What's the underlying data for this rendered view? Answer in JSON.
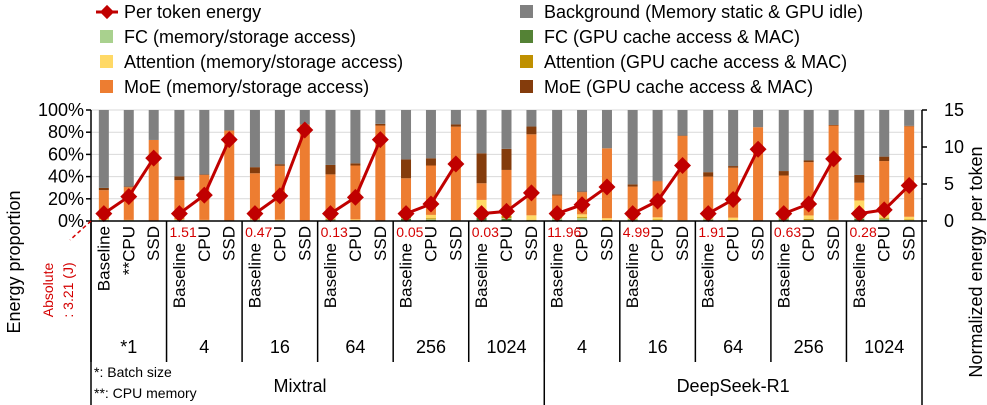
{
  "chart_data": {
    "type": "bar",
    "subtype": "stacked-bar-with-line",
    "legend": {
      "placement": "top",
      "items": [
        {
          "name": "Per token energy",
          "kind": "line",
          "color": "#c00000"
        },
        {
          "name": "Background (Memory static & GPU idle)",
          "kind": "bar",
          "color": "#808080"
        },
        {
          "name": "FC (memory/storage access)",
          "kind": "bar",
          "color": "#a9d18e"
        },
        {
          "name": "FC (GPU cache access & MAC)",
          "kind": "bar",
          "color": "#548235"
        },
        {
          "name": "Attention (memory/storage access)",
          "kind": "bar",
          "color": "#ffd966"
        },
        {
          "name": "Attention (GPU cache access & MAC)",
          "kind": "bar",
          "color": "#bf9000"
        },
        {
          "name": "MoE (memory/storage access)",
          "kind": "bar",
          "color": "#ed7d31"
        },
        {
          "name": "MoE (GPU cache access & MAC)",
          "kind": "bar",
          "color": "#843c0c"
        }
      ]
    },
    "y_left": {
      "label": "Energy proportion",
      "range": [
        0,
        100
      ],
      "ticks": [
        "0%",
        "20%",
        "40%",
        "60%",
        "80%",
        "100%"
      ],
      "tick_values": [
        0,
        20,
        40,
        60,
        80,
        100
      ]
    },
    "y_right": {
      "label": "Normalized energy per token",
      "range": [
        0,
        15
      ],
      "ticks": [
        "0",
        "5",
        "10",
        "15"
      ],
      "tick_values": [
        0,
        5,
        10,
        15
      ]
    },
    "grid": true,
    "bar_labels": [
      "Baseline",
      "CPU",
      "SSD"
    ],
    "bar_label_first_cpu": "**CPU",
    "stack_order": [
      "FC (GPU cache access & MAC)",
      "FC (memory/storage access)",
      "Attention (GPU cache access & MAC)",
      "Attention (memory/storage access)",
      "MoE (memory/storage access)",
      "MoE (GPU cache access & MAC)",
      "Background (Memory static & GPU idle)"
    ],
    "models": [
      {
        "name": "Mixtral",
        "groups": [
          {
            "batch": "*1",
            "absolute": "",
            "bars": [
              {
                "fcg": 0.5,
                "fcm": 0.5,
                "atg": 0.3,
                "atm": 0.5,
                "moem": 26,
                "moeg": 2,
                "bg": 70.2
              },
              {
                "fcg": 0.2,
                "fcm": 0.3,
                "atg": 0.2,
                "atm": 0.3,
                "moem": 29.5,
                "moeg": 0.5,
                "bg": 69
              },
              {
                "fcg": 0,
                "fcm": 0.2,
                "atg": 0,
                "atm": 0.3,
                "moem": 72.5,
                "moeg": 0,
                "bg": 27
              }
            ],
            "line": [
              1,
              3.3,
              8.5
            ]
          },
          {
            "batch": "4",
            "absolute": "1.51",
            "bars": [
              {
                "fcg": 0.5,
                "fcm": 0.5,
                "atg": 0.3,
                "atm": 0.5,
                "moem": 35,
                "moeg": 3.5,
                "bg": 59.7
              },
              {
                "fcg": 0.2,
                "fcm": 0.3,
                "atg": 0.2,
                "atm": 0.3,
                "moem": 40.5,
                "moeg": 0.5,
                "bg": 58
              },
              {
                "fcg": 0,
                "fcm": 0.2,
                "atg": 0,
                "atm": 0.3,
                "moem": 81,
                "moeg": 0,
                "bg": 18.5
              }
            ],
            "line": [
              1,
              3.5,
              11
            ]
          },
          {
            "batch": "16",
            "absolute": "0.47",
            "bars": [
              {
                "fcg": 0.6,
                "fcm": 0.5,
                "atg": 0.4,
                "atm": 0.5,
                "moem": 41,
                "moeg": 5.5,
                "bg": 51.5
              },
              {
                "fcg": 0.2,
                "fcm": 0.3,
                "atg": 0.2,
                "atm": 0.5,
                "moem": 48.5,
                "moeg": 1.5,
                "bg": 48.8
              },
              {
                "fcg": 0,
                "fcm": 0.2,
                "atg": 0,
                "atm": 0.3,
                "moem": 86.5,
                "moeg": 0,
                "bg": 13
              }
            ],
            "line": [
              1,
              3.4,
              12.3
            ]
          },
          {
            "batch": "64",
            "absolute": "0.13",
            "bars": [
              {
                "fcg": 0.8,
                "fcm": 0.5,
                "atg": 0.5,
                "atm": 0.7,
                "moem": 39.5,
                "moeg": 8.5,
                "bg": 49.5
              },
              {
                "fcg": 0.3,
                "fcm": 0.3,
                "atg": 0.3,
                "atm": 0.6,
                "moem": 48.5,
                "moeg": 2,
                "bg": 48
              },
              {
                "fcg": 0,
                "fcm": 0.2,
                "atg": 0,
                "atm": 0.3,
                "moem": 85.5,
                "moeg": 1.5,
                "bg": 12.5
              }
            ],
            "line": [
              1,
              3.2,
              11
            ]
          },
          {
            "batch": "256",
            "absolute": "0.05",
            "bars": [
              {
                "fcg": 2,
                "fcm": 0.5,
                "atg": 2,
                "atm": 6,
                "moem": 28,
                "moeg": 17,
                "bg": 44.5
              },
              {
                "fcg": 1,
                "fcm": 0.5,
                "atg": 1,
                "atm": 3,
                "moem": 44.5,
                "moeg": 6.5,
                "bg": 43.5
              },
              {
                "fcg": 0,
                "fcm": 0.2,
                "atg": 0,
                "atm": 0.5,
                "moem": 84.3,
                "moeg": 2,
                "bg": 13
              }
            ],
            "line": [
              1,
              2.3,
              7.7
            ]
          },
          {
            "batch": "1024",
            "absolute": "0.03",
            "bars": [
              {
                "fcg": 3,
                "fcm": 0.5,
                "atg": 2.5,
                "atm": 13,
                "moem": 15,
                "moeg": 27,
                "bg": 39
              },
              {
                "fcg": 2,
                "fcm": 0.5,
                "atg": 2,
                "atm": 4,
                "moem": 37.5,
                "moeg": 19,
                "bg": 35
              },
              {
                "fcg": 0.3,
                "fcm": 0.3,
                "atg": 0.5,
                "atm": 4,
                "moem": 73,
                "moeg": 7,
                "bg": 14.9
              }
            ],
            "line": [
              1,
              1.3,
              3.8
            ]
          }
        ]
      },
      {
        "name": "DeepSeek-R1",
        "groups": [
          {
            "batch": "4",
            "absolute": "11.96",
            "bars": [
              {
                "fcg": 1,
                "fcm": 1.5,
                "atg": 1,
                "atm": 2.5,
                "moem": 17,
                "moeg": 1,
                "bg": 76
              },
              {
                "fcg": 0.5,
                "fcm": 2,
                "atg": 1,
                "atm": 2.5,
                "moem": 20,
                "moeg": 0.5,
                "bg": 73.5
              },
              {
                "fcg": 0,
                "fcm": 0.5,
                "atg": 0.5,
                "atm": 1.5,
                "moem": 63,
                "moeg": 0,
                "bg": 34.5
              }
            ],
            "line": [
              1,
              2.2,
              4.6
            ]
          },
          {
            "batch": "16",
            "absolute": "4.99",
            "bars": [
              {
                "fcg": 0.8,
                "fcm": 0.7,
                "atg": 0.5,
                "atm": 1,
                "moem": 28,
                "moeg": 2,
                "bg": 67
              },
              {
                "fcg": 0.3,
                "fcm": 0.5,
                "atg": 0.5,
                "atm": 2,
                "moem": 32.5,
                "moeg": 0.5,
                "bg": 63.7
              },
              {
                "fcg": 0,
                "fcm": 0.2,
                "atg": 0,
                "atm": 0.5,
                "moem": 76,
                "moeg": 0.3,
                "bg": 23
              }
            ],
            "line": [
              1,
              2.7,
              7.5
            ]
          },
          {
            "batch": "64",
            "absolute": "1.91",
            "bars": [
              {
                "fcg": 1,
                "fcm": 0.5,
                "atg": 0.5,
                "atm": 1,
                "moem": 37,
                "moeg": 4,
                "bg": 56
              },
              {
                "fcg": 0.3,
                "fcm": 0.3,
                "atg": 0.4,
                "atm": 2,
                "moem": 45,
                "moeg": 1.5,
                "bg": 50.5
              },
              {
                "fcg": 0,
                "fcm": 0.2,
                "atg": 0,
                "atm": 0.3,
                "moem": 84,
                "moeg": 0,
                "bg": 15.5
              }
            ],
            "line": [
              1,
              2.9,
              9.7
            ]
          },
          {
            "batch": "256",
            "absolute": "0.63",
            "bars": [
              {
                "fcg": 1.5,
                "fcm": 0.5,
                "atg": 2,
                "atm": 1,
                "moem": 36,
                "moeg": 4,
                "bg": 55
              },
              {
                "fcg": 0.5,
                "fcm": 0.5,
                "atg": 1,
                "atm": 3,
                "moem": 48,
                "moeg": 1.5,
                "bg": 45.5
              },
              {
                "fcg": 0,
                "fcm": 0.3,
                "atg": 0,
                "atm": 0.7,
                "moem": 85,
                "moeg": 0.5,
                "bg": 13.5
              }
            ],
            "line": [
              1,
              2.3,
              8.4
            ]
          },
          {
            "batch": "1024",
            "absolute": "0.28",
            "bars": [
              {
                "fcg": 2,
                "fcm": 0.5,
                "atg": 4,
                "atm": 12,
                "moem": 16,
                "moeg": 7,
                "bg": 58.5
              },
              {
                "fcg": 1.5,
                "fcm": 0.5,
                "atg": 1,
                "atm": 3,
                "moem": 48,
                "moeg": 4,
                "bg": 42
              },
              {
                "fcg": 0.5,
                "fcm": 0.3,
                "atg": 0.5,
                "atm": 2.5,
                "moem": 81.5,
                "moeg": 0.5,
                "bg": 14.2
              }
            ],
            "line": [
              1,
              1.5,
              4.8
            ]
          }
        ]
      }
    ],
    "annotations": {
      "absolute": "Absolute",
      "absolute_value": ": 3.21 (J)",
      "note1": "*: Batch size",
      "note2": "**: CPU memory"
    }
  }
}
